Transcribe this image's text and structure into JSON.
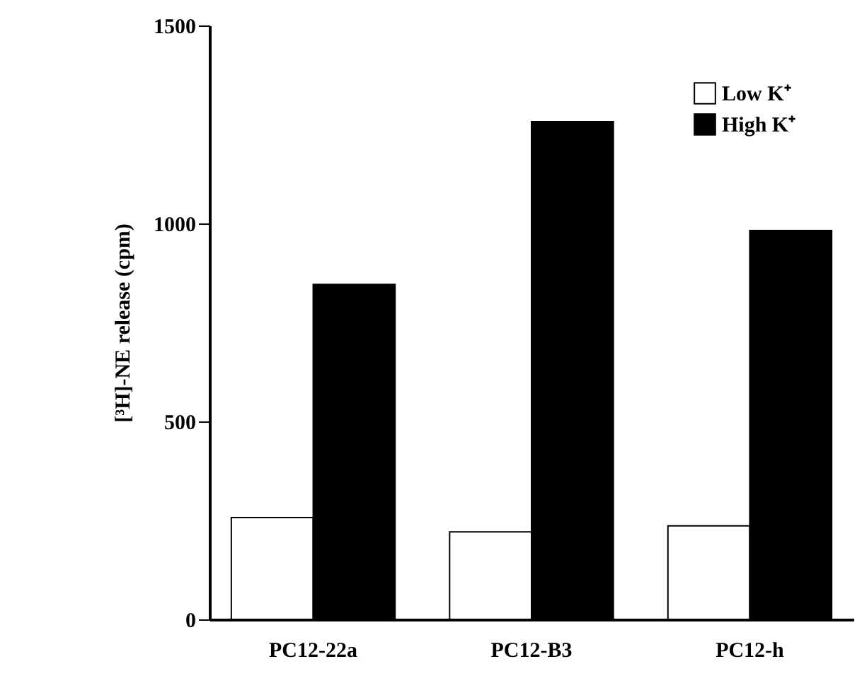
{
  "chart_data": {
    "type": "bar",
    "ylabel": "[³H]-NE release (cpm)",
    "categories": [
      "PC12-22a",
      "PC12-B3",
      "PC12-h"
    ],
    "series": [
      {
        "name": "Low K⁺",
        "color": "#ffffff",
        "values": [
          257,
          221,
          236
        ]
      },
      {
        "name": "High K⁺",
        "color": "#000000",
        "values": [
          846,
          1257,
          982
        ]
      }
    ],
    "ylim": [
      0,
      1500
    ],
    "yticks": [
      0,
      500,
      1000,
      1500
    ],
    "grid": false,
    "legend": "top right"
  }
}
